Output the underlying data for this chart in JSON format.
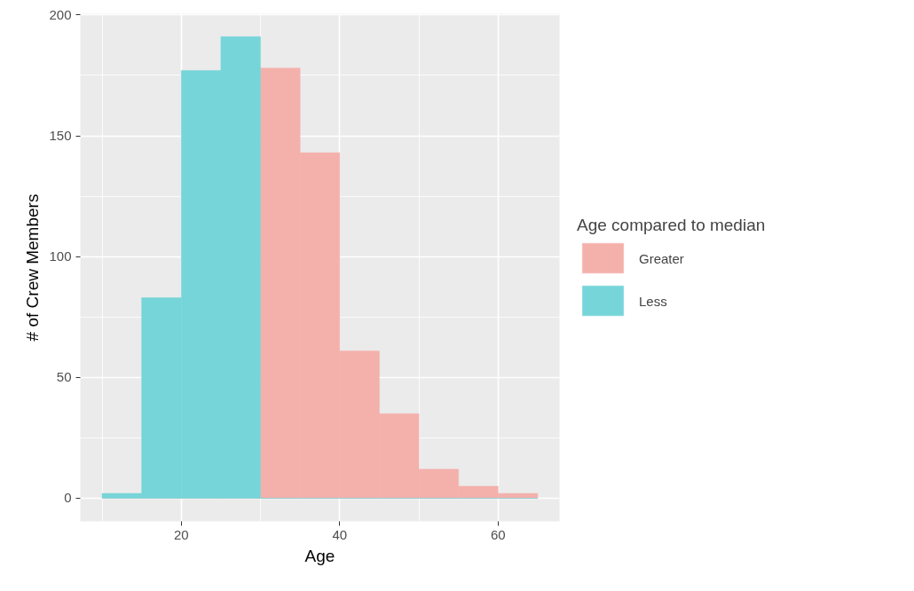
{
  "chart_data": {
    "type": "histogram",
    "xlabel": "Age",
    "ylabel": "# of Crew Members",
    "legend_title": "Age compared to median",
    "bins": [
      10,
      15,
      20,
      25,
      30,
      35,
      40,
      45,
      50,
      55,
      60,
      65
    ],
    "series": [
      {
        "name": "Greater",
        "color": "#f4b1ac",
        "values": [
          0,
          0,
          0,
          0,
          178,
          143,
          61,
          35,
          12,
          5,
          2
        ]
      },
      {
        "name": "Less",
        "color": "#76d5d8",
        "values": [
          2,
          83,
          177,
          191,
          0,
          0,
          0,
          0,
          0,
          0,
          0
        ]
      }
    ],
    "xlim": [
      7.25,
      67.75
    ],
    "ylim": [
      -9.55,
      200.5
    ],
    "xticks": [
      20,
      40,
      60
    ],
    "yticks": [
      0,
      50,
      100,
      150,
      200
    ],
    "grid": true,
    "legend": "right"
  }
}
